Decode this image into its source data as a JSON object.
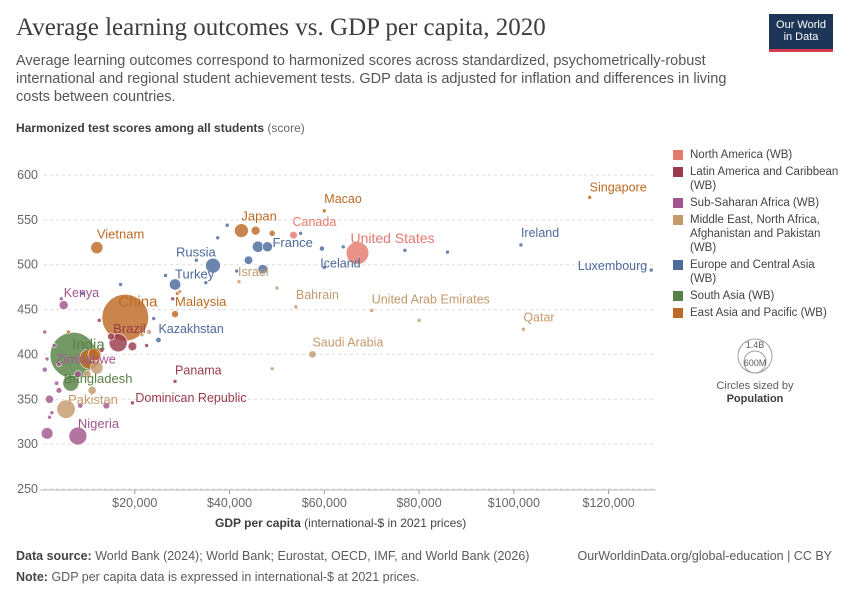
{
  "header": {
    "title": "Average learning outcomes vs. GDP per capita, 2020",
    "subtitle": "Average learning outcomes correspond to harmonized scores across standardized, psychometrically-robust international and regional student achievement tests. GDP data is adjusted for inflation and differences in living costs between countries.",
    "logo_line1": "Our World",
    "logo_line2": "in Data"
  },
  "axes": {
    "y_title": "Harmonized test scores among all students",
    "y_unit": "(score)",
    "x_title": "GDP per capita",
    "x_unit": "(international-$ in 2021 prices)"
  },
  "legend": {
    "items": [
      {
        "label": "North America (WB)",
        "color": "#e47a6c"
      },
      {
        "label": "Latin America and Caribbean (WB)",
        "color": "#9a3a4b"
      },
      {
        "label": "Sub-Saharan Africa (WB)",
        "color": "#a2558c"
      },
      {
        "label": "Middle East, North Africa, Afghanistan and Pakistan (WB)",
        "color": "#c49a6c"
      },
      {
        "label": "Europe and Central Asia (WB)",
        "color": "#4c6a9c"
      },
      {
        "label": "South Asia (WB)",
        "color": "#578145"
      },
      {
        "label": "East Asia and Pacific (WB)",
        "color": "#bd6a24"
      }
    ],
    "size_big": "1.4B",
    "size_small": "600M",
    "size_note": "Circles sized by",
    "size_variable": "Population"
  },
  "footer": {
    "source_label": "Data source:",
    "source_text": "World Bank (2024); World Bank; Eurostat, OECD, IMF, and World Bank (2026)",
    "note_label": "Note:",
    "note_text": "GDP per capita data is expressed in international-$ at 2021 prices.",
    "attribution": "OurWorldinData.org/global-education | CC BY"
  },
  "chart_data": {
    "type": "scatter",
    "title": "Average learning outcomes vs. GDP per capita, 2020",
    "xlabel": "GDP per capita",
    "ylabel": "Harmonized test scores among all students",
    "xlim": [
      0,
      130000
    ],
    "ylim": [
      250,
      620
    ],
    "x_ticks": [
      20000,
      40000,
      60000,
      80000,
      100000,
      120000
    ],
    "x_tick_labels": [
      "$20,000",
      "$40,000",
      "$60,000",
      "$80,000",
      "$100,000",
      "$120,000"
    ],
    "y_ticks": [
      250,
      300,
      350,
      400,
      450,
      500,
      550,
      600
    ],
    "grid": "horizontal dashed",
    "legend_position": "right",
    "points": [
      {
        "name": "Singapore",
        "x": 116000,
        "y": 575,
        "pop_m": 6,
        "region": "East Asia and Pacific (WB)"
      },
      {
        "name": "Macao",
        "x": 60000,
        "y": 560,
        "pop_m": 0.7,
        "region": "East Asia and Pacific (WB)"
      },
      {
        "name": "Japan",
        "x": 42500,
        "y": 538,
        "pop_m": 125,
        "region": "East Asia and Pacific (WB)"
      },
      {
        "name": "Canada",
        "x": 53500,
        "y": 533,
        "pop_m": 38,
        "region": "North America (WB)"
      },
      {
        "name": "United States",
        "x": 67000,
        "y": 513,
        "pop_m": 331,
        "region": "North America (WB)"
      },
      {
        "name": "Ireland",
        "x": 101500,
        "y": 522,
        "pop_m": 5,
        "region": "Europe and Central Asia (WB)"
      },
      {
        "name": "Luxembourg",
        "x": 129000,
        "y": 494,
        "pop_m": 0.6,
        "region": "Europe and Central Asia (WB)"
      },
      {
        "name": "Vietnam",
        "x": 12000,
        "y": 519,
        "pop_m": 97,
        "region": "East Asia and Pacific (WB)"
      },
      {
        "name": "France",
        "x": 48000,
        "y": 520,
        "pop_m": 67,
        "region": "Europe and Central Asia (WB)"
      },
      {
        "name": "Russia",
        "x": 36500,
        "y": 499,
        "pop_m": 144,
        "region": "Europe and Central Asia (WB)"
      },
      {
        "name": "Iceland",
        "x": 60000,
        "y": 497,
        "pop_m": 0.4,
        "region": "Europe and Central Asia (WB)"
      },
      {
        "name": "Israel",
        "x": 42000,
        "y": 481,
        "pop_m": 9,
        "region": "Middle East, North Africa, Afghanistan and Pakistan (WB)"
      },
      {
        "name": "Turkey",
        "x": 28500,
        "y": 478,
        "pop_m": 84,
        "region": "Europe and Central Asia (WB)"
      },
      {
        "name": "Kenya",
        "x": 5000,
        "y": 455,
        "pop_m": 54,
        "region": "Sub-Saharan Africa (WB)"
      },
      {
        "name": "China",
        "x": 18000,
        "y": 441,
        "pop_m": 1410,
        "region": "East Asia and Pacific (WB)"
      },
      {
        "name": "Malaysia",
        "x": 28500,
        "y": 445,
        "pop_m": 33,
        "region": "East Asia and Pacific (WB)"
      },
      {
        "name": "Bahrain",
        "x": 54000,
        "y": 453,
        "pop_m": 1.7,
        "region": "Middle East, North Africa, Afghanistan and Pakistan (WB)"
      },
      {
        "name": "United Arab Emirates",
        "x": 70000,
        "y": 449,
        "pop_m": 9,
        "region": "Middle East, North Africa, Afghanistan and Pakistan (WB)"
      },
      {
        "name": "Qatar",
        "x": 102000,
        "y": 428,
        "pop_m": 2.8,
        "region": "Middle East, North Africa, Afghanistan and Pakistan (WB)"
      },
      {
        "name": "India",
        "x": 7000,
        "y": 399,
        "pop_m": 1380,
        "region": "South Asia (WB)"
      },
      {
        "name": "Brazil",
        "x": 16500,
        "y": 413,
        "pop_m": 213,
        "region": "Latin America and Caribbean (WB)"
      },
      {
        "name": "Kazakhstan",
        "x": 25000,
        "y": 416,
        "pop_m": 19,
        "region": "Europe and Central Asia (WB)"
      },
      {
        "name": "Saudi Arabia",
        "x": 57500,
        "y": 400,
        "pop_m": 35,
        "region": "Middle East, North Africa, Afghanistan and Pakistan (WB)"
      },
      {
        "name": "Zimbabwe",
        "x": 4000,
        "y": 389,
        "pop_m": 15,
        "region": "Sub-Saharan Africa (WB)"
      },
      {
        "name": "Bangladesh",
        "x": 6500,
        "y": 368,
        "pop_m": 167,
        "region": "South Asia (WB)"
      },
      {
        "name": "Panama",
        "x": 28500,
        "y": 370,
        "pop_m": 4.3,
        "region": "Latin America and Caribbean (WB)"
      },
      {
        "name": "Pakistan",
        "x": 5500,
        "y": 339,
        "pop_m": 220,
        "region": "Middle East, North Africa, Afghanistan and Pakistan (WB)"
      },
      {
        "name": "Dominican Republic",
        "x": 19500,
        "y": 346,
        "pop_m": 11,
        "region": "Latin America and Caribbean (WB)"
      },
      {
        "name": "Nigeria",
        "x": 8000,
        "y": 309,
        "pop_m": 208,
        "region": "Sub-Saharan Africa (WB)"
      },
      {
        "name": "",
        "x": 29000,
        "y": 468,
        "pop_m": 6,
        "region": "East Asia and Pacific (WB)"
      },
      {
        "name": "",
        "x": 33000,
        "y": 505,
        "pop_m": 10,
        "region": "Europe and Central Asia (WB)"
      },
      {
        "name": "",
        "x": 37500,
        "y": 530,
        "pop_m": 10,
        "region": "Europe and Central Asia (WB)"
      },
      {
        "name": "",
        "x": 39500,
        "y": 544,
        "pop_m": 5,
        "region": "Europe and Central Asia (WB)"
      },
      {
        "name": "",
        "x": 45500,
        "y": 538,
        "pop_m": 52,
        "region": "East Asia and Pacific (WB)"
      },
      {
        "name": "",
        "x": 46000,
        "y": 520,
        "pop_m": 83,
        "region": "Europe and Central Asia (WB)"
      },
      {
        "name": "",
        "x": 49000,
        "y": 535,
        "pop_m": 24,
        "region": "East Asia and Pacific (WB)"
      },
      {
        "name": "",
        "x": 44000,
        "y": 505,
        "pop_m": 47,
        "region": "Europe and Central Asia (WB)"
      },
      {
        "name": "",
        "x": 55000,
        "y": 535,
        "pop_m": 6,
        "region": "Europe and Central Asia (WB)"
      },
      {
        "name": "",
        "x": 59500,
        "y": 518,
        "pop_m": 17,
        "region": "Europe and Central Asia (WB)"
      },
      {
        "name": "",
        "x": 64000,
        "y": 520,
        "pop_m": 5,
        "region": "Europe and Central Asia (WB)"
      },
      {
        "name": "",
        "x": 77000,
        "y": 516,
        "pop_m": 5,
        "region": "Europe and Central Asia (WB)"
      },
      {
        "name": "",
        "x": 86000,
        "y": 514,
        "pop_m": 8.6,
        "region": "Europe and Central Asia (WB)"
      },
      {
        "name": "",
        "x": 47000,
        "y": 495,
        "pop_m": 59,
        "region": "Europe and Central Asia (WB)"
      },
      {
        "name": "",
        "x": 41500,
        "y": 493,
        "pop_m": 8,
        "region": "Europe and Central Asia (WB)"
      },
      {
        "name": "",
        "x": 35000,
        "y": 480,
        "pop_m": 2,
        "region": "Europe and Central Asia (WB)"
      },
      {
        "name": "",
        "x": 26500,
        "y": 488,
        "pop_m": 3,
        "region": "Europe and Central Asia (WB)"
      },
      {
        "name": "",
        "x": 50000,
        "y": 474,
        "pop_m": 2.7,
        "region": "Middle East, North Africa, Afghanistan and Pakistan (WB)"
      },
      {
        "name": "",
        "x": 80000,
        "y": 438,
        "pop_m": 4.3,
        "region": "Middle East, North Africa, Afghanistan and Pakistan (WB)"
      },
      {
        "name": "",
        "x": 49000,
        "y": 384,
        "pop_m": 3.2,
        "region": "Middle East, North Africa, Afghanistan and Pakistan (WB)"
      },
      {
        "name": "",
        "x": 29500,
        "y": 470,
        "pop_m": 4,
        "region": "Middle East, North Africa, Afghanistan and Pakistan (WB)"
      },
      {
        "name": "",
        "x": 28000,
        "y": 462,
        "pop_m": 4,
        "region": "Latin America and Caribbean (WB)"
      },
      {
        "name": "",
        "x": 24000,
        "y": 440,
        "pop_m": 4,
        "region": "Europe and Central Asia (WB)"
      },
      {
        "name": "",
        "x": 23000,
        "y": 425,
        "pop_m": 15,
        "region": "Middle East, North Africa, Afghanistan and Pakistan (WB)"
      },
      {
        "name": "",
        "x": 22500,
        "y": 410,
        "pop_m": 4,
        "region": "Latin America and Caribbean (WB)"
      },
      {
        "name": "",
        "x": 21500,
        "y": 422,
        "pop_m": 4,
        "region": "Middle East, North Africa, Afghanistan and Pakistan (WB)"
      },
      {
        "name": "",
        "x": 19500,
        "y": 409,
        "pop_m": 50,
        "region": "Latin America and Caribbean (WB)"
      },
      {
        "name": "",
        "x": 15000,
        "y": 420,
        "pop_m": 33,
        "region": "Latin America and Caribbean (WB)"
      },
      {
        "name": "",
        "x": 13000,
        "y": 405,
        "pop_m": 17,
        "region": "Latin America and Caribbean (WB)"
      },
      {
        "name": "",
        "x": 11500,
        "y": 400,
        "pop_m": 109,
        "region": "East Asia and Pacific (WB)"
      },
      {
        "name": "",
        "x": 10500,
        "y": 395,
        "pop_m": 273,
        "region": "East Asia and Pacific (WB)"
      },
      {
        "name": "",
        "x": 12000,
        "y": 385,
        "pop_m": 102,
        "region": "Middle East, North Africa, Afghanistan and Pakistan (WB)"
      },
      {
        "name": "",
        "x": 10000,
        "y": 378,
        "pop_m": 36,
        "region": "Middle East, North Africa, Afghanistan and Pakistan (WB)"
      },
      {
        "name": "",
        "x": 11000,
        "y": 360,
        "pop_m": 44,
        "region": "Middle East, North Africa, Afghanistan and Pakistan (WB)"
      },
      {
        "name": "",
        "x": 8000,
        "y": 378,
        "pop_m": 31,
        "region": "Sub-Saharan Africa (WB)"
      },
      {
        "name": "",
        "x": 4000,
        "y": 360,
        "pop_m": 22,
        "region": "Sub-Saharan Africa (WB)"
      },
      {
        "name": "",
        "x": 3500,
        "y": 368,
        "pop_m": 13,
        "region": "Sub-Saharan Africa (WB)"
      },
      {
        "name": "",
        "x": 2000,
        "y": 350,
        "pop_m": 44,
        "region": "Sub-Saharan Africa (WB)"
      },
      {
        "name": "",
        "x": 1500,
        "y": 312,
        "pop_m": 89,
        "region": "Sub-Saharan Africa (WB)"
      },
      {
        "name": "",
        "x": 2500,
        "y": 335,
        "pop_m": 8,
        "region": "Sub-Saharan Africa (WB)"
      },
      {
        "name": "",
        "x": 1500,
        "y": 395,
        "pop_m": 10,
        "region": "Sub-Saharan Africa (WB)"
      },
      {
        "name": "",
        "x": 1000,
        "y": 383,
        "pop_m": 17,
        "region": "Sub-Saharan Africa (WB)"
      },
      {
        "name": "",
        "x": 3000,
        "y": 410,
        "pop_m": 6,
        "region": "Sub-Saharan Africa (WB)"
      },
      {
        "name": "",
        "x": 2000,
        "y": 330,
        "pop_m": 8,
        "region": "Sub-Saharan Africa (WB)"
      },
      {
        "name": "",
        "x": 6000,
        "y": 425,
        "pop_m": 2,
        "region": "East Asia and Pacific (WB)"
      },
      {
        "name": "",
        "x": 4500,
        "y": 462,
        "pop_m": 2,
        "region": "Sub-Saharan Africa (WB)"
      },
      {
        "name": "",
        "x": 9000,
        "y": 468,
        "pop_m": 3,
        "region": "Europe and Central Asia (WB)"
      },
      {
        "name": "",
        "x": 17000,
        "y": 478,
        "pop_m": 3,
        "region": "Europe and Central Asia (WB)"
      },
      {
        "name": "",
        "x": 8500,
        "y": 343,
        "pop_m": 18,
        "region": "Sub-Saharan Africa (WB)"
      },
      {
        "name": "",
        "x": 14000,
        "y": 343,
        "pop_m": 30,
        "region": "Sub-Saharan Africa (WB)"
      },
      {
        "name": "",
        "x": 1000,
        "y": 425,
        "pop_m": 2,
        "region": "Sub-Saharan Africa (WB)"
      },
      {
        "name": "",
        "x": 12500,
        "y": 438,
        "pop_m": 3,
        "region": "Latin America and Caribbean (WB)"
      }
    ]
  }
}
